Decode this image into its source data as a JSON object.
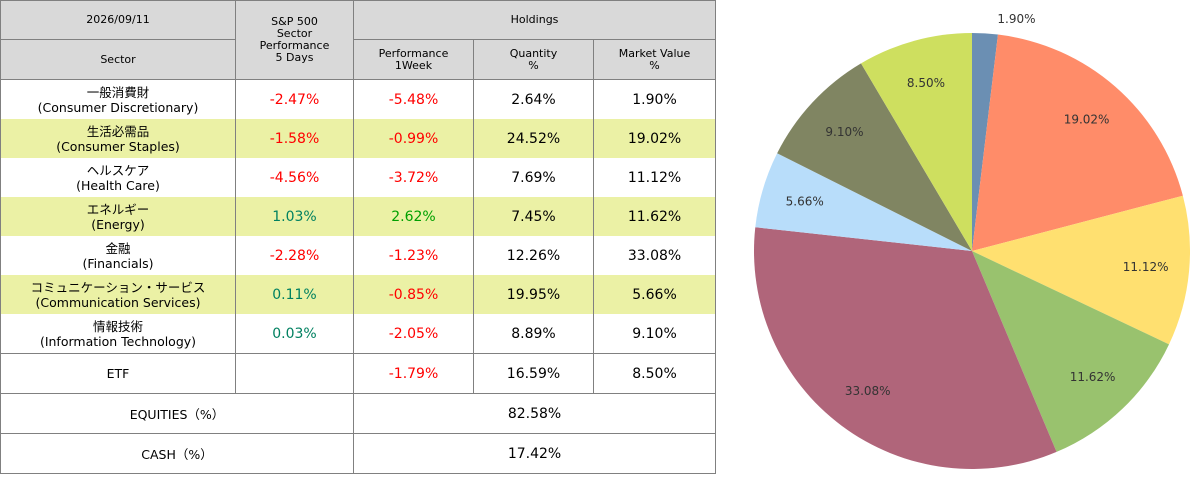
{
  "table": {
    "date": "2026/09/11",
    "holdings_header": "Holdings",
    "sector_header": "Sector",
    "sp500_header": [
      "S&P 500",
      "Sector",
      "Performance",
      "5 Days"
    ],
    "perf_week_header": [
      "Performance",
      "1Week"
    ],
    "quantity_header": [
      "Quantity",
      "%"
    ],
    "market_value_header": [
      "Market Value",
      "%"
    ],
    "rows": [
      {
        "name_ja": "一般消費財",
        "name_en": "(Consumer Discretionary)",
        "sp500_5d": "-2.47%",
        "perf_1w": "-5.48%",
        "quantity": "2.64%",
        "market_value": "1.90%"
      },
      {
        "name_ja": "生活必需品",
        "name_en": "(Consumer Staples)",
        "sp500_5d": "-1.58%",
        "perf_1w": "-0.99%",
        "quantity": "24.52%",
        "market_value": "19.02%"
      },
      {
        "name_ja": "ヘルスケア",
        "name_en": "(Health Care)",
        "sp500_5d": "-4.56%",
        "perf_1w": "-3.72%",
        "quantity": "7.69%",
        "market_value": "11.12%"
      },
      {
        "name_ja": "エネルギー",
        "name_en": "(Energy)",
        "sp500_5d": "1.03%",
        "perf_1w": "2.62%",
        "quantity": "7.45%",
        "market_value": "11.62%"
      },
      {
        "name_ja": "金融",
        "name_en": "(Financials)",
        "sp500_5d": "-2.28%",
        "perf_1w": "-1.23%",
        "quantity": "12.26%",
        "market_value": "33.08%"
      },
      {
        "name_ja": "コミュニケーション・サービス",
        "name_en": "(Communication Services)",
        "sp500_5d": "0.11%",
        "perf_1w": "-0.85%",
        "quantity": "19.95%",
        "market_value": "5.66%"
      },
      {
        "name_ja": "情報技術",
        "name_en": "(Information Technology)",
        "sp500_5d": "0.03%",
        "perf_1w": "-2.05%",
        "quantity": "8.89%",
        "market_value": "9.10%"
      }
    ],
    "etf": {
      "label": "ETF",
      "perf_1w": "-1.79%",
      "quantity": "16.59%",
      "market_value": "8.50%"
    },
    "equities": {
      "label": "EQUITIES（%）",
      "value": "82.58%"
    },
    "cash": {
      "label": "CASH（%）",
      "value": "17.42%"
    },
    "colors": {
      "negative": "#ff0000",
      "positive_week": "#00a000",
      "positive_5d": "#008060",
      "highlight_row": "#ebf1a5",
      "header_bg": "#d9d9d9"
    }
  },
  "chart_data": {
    "type": "pie",
    "title": "",
    "start": "top, clockwise",
    "labels": [
      "1.90%",
      "19.02%",
      "11.12%",
      "11.62%",
      "33.08%",
      "5.66%",
      "9.10%",
      "8.50%"
    ],
    "values": [
      1.9,
      19.02,
      11.12,
      11.62,
      33.08,
      5.66,
      9.1,
      8.5
    ],
    "colors": [
      "#6b8fb3",
      "#ff8c69",
      "#ffe070",
      "#99c26e",
      "#b0657a",
      "#b8ddfa",
      "#808562",
      "#cedf5f"
    ]
  }
}
